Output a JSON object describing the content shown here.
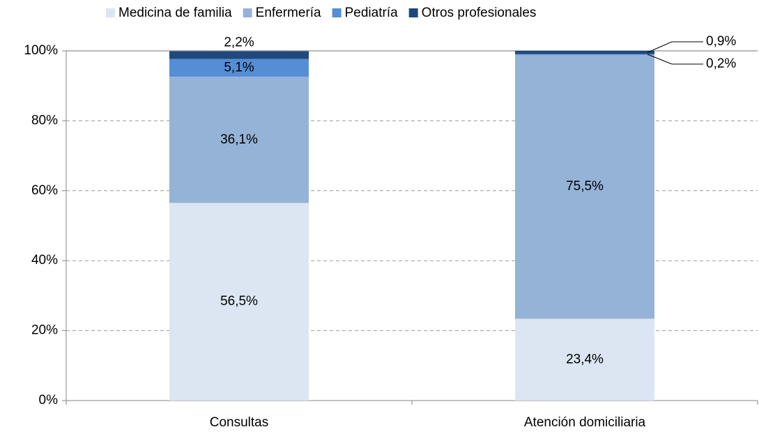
{
  "chart_data": {
    "type": "stacked_bar",
    "categories": [
      "Consultas",
      "Atención domiciliaria"
    ],
    "series": [
      {
        "name": "Medicina de familia",
        "color": "#dce6f2",
        "values": [
          56.5,
          23.4
        ],
        "value_labels": [
          "56,5%",
          "23,4%"
        ]
      },
      {
        "name": "Enfermería",
        "color": "#95b3d7",
        "values": [
          36.1,
          75.5
        ],
        "value_labels": [
          "36,1%",
          "75,5%"
        ]
      },
      {
        "name": "Pediatría",
        "color": "#558ed5",
        "values": [
          5.1,
          0.2
        ],
        "value_labels": [
          "5,1%",
          "0,2%"
        ]
      },
      {
        "name": "Otros profesionales",
        "color": "#1f497d",
        "values": [
          2.2,
          0.9
        ],
        "value_labels": [
          "2,2%",
          "0,9%"
        ]
      }
    ],
    "ylim": [
      0,
      100
    ],
    "yticks": [
      {
        "value": 0,
        "label": "0%"
      },
      {
        "value": 20,
        "label": "20%"
      },
      {
        "value": 40,
        "label": "40%"
      },
      {
        "value": 60,
        "label": "60%"
      },
      {
        "value": 80,
        "label": "80%"
      },
      {
        "value": 100,
        "label": "100%"
      }
    ],
    "grid": true,
    "legend": "top"
  }
}
